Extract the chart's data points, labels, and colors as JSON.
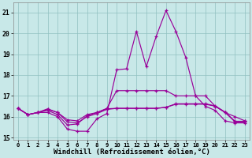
{
  "background_color": "#c8e8e8",
  "grid_color": "#90c0c0",
  "line_color": "#990099",
  "xlabel": "Windchill (Refroidissement éolien,°C)",
  "xlabel_fontsize": 6.5,
  "ylim": [
    14.9,
    21.5
  ],
  "xlim": [
    -0.5,
    23.5
  ],
  "yticks": [
    15,
    16,
    17,
    18,
    19,
    20,
    21
  ],
  "xticks": [
    0,
    1,
    2,
    3,
    4,
    5,
    6,
    7,
    8,
    9,
    10,
    11,
    12,
    13,
    14,
    15,
    16,
    17,
    18,
    19,
    20,
    21,
    22,
    23
  ],
  "series": [
    [
      16.4,
      16.1,
      16.2,
      16.2,
      16.0,
      15.4,
      15.3,
      15.3,
      15.9,
      16.15,
      18.25,
      18.3,
      20.1,
      18.4,
      19.85,
      21.1,
      20.1,
      18.85,
      17.0,
      16.5,
      16.3,
      15.8,
      15.7,
      15.7
    ],
    [
      16.4,
      16.1,
      16.2,
      16.3,
      16.1,
      15.6,
      15.65,
      16.05,
      16.2,
      16.4,
      17.25,
      17.25,
      17.25,
      17.25,
      17.25,
      17.25,
      17.0,
      17.0,
      17.0,
      17.0,
      16.5,
      16.2,
      16.0,
      15.8
    ],
    [
      16.4,
      16.1,
      16.2,
      16.35,
      16.2,
      15.75,
      15.7,
      16.0,
      16.15,
      16.35,
      16.4,
      16.4,
      16.4,
      16.4,
      16.4,
      16.45,
      16.6,
      16.6,
      16.6,
      16.6,
      16.5,
      16.2,
      15.75,
      15.75
    ],
    [
      16.4,
      16.1,
      16.2,
      16.38,
      16.2,
      15.85,
      15.8,
      16.1,
      16.2,
      16.38,
      16.4,
      16.4,
      16.4,
      16.4,
      16.4,
      16.45,
      16.62,
      16.62,
      16.62,
      16.62,
      16.52,
      16.22,
      15.78,
      15.78
    ]
  ]
}
